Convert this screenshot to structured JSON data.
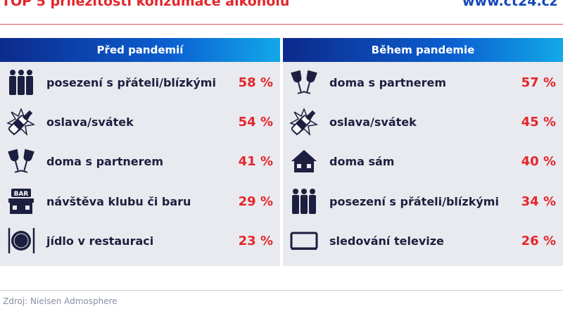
{
  "title": "TOP 5 příležitostí konzumace alkoholu",
  "site": "www.ct24.cz",
  "source": "Zdroj: Nielsen Admosphere",
  "colors": {
    "accent": "#e3262b",
    "navy": "#1c1f3f",
    "header_from": "#0c2a8c",
    "header_to": "#12a8e8"
  },
  "panels": [
    {
      "header": "Před pandemií",
      "items": [
        {
          "icon": "friends-icon",
          "label": "posezení s přáteli/blízkými",
          "value": "58 %"
        },
        {
          "icon": "champagne-icon",
          "label": "oslava/svátek",
          "value": "54 %"
        },
        {
          "icon": "wine-glasses-icon",
          "label": "doma s partnerem",
          "value": "41 %"
        },
        {
          "icon": "bar-icon",
          "label": "návštěva klubu či baru",
          "value": "29 %"
        },
        {
          "icon": "plate-icon",
          "label": "jídlo v restauraci",
          "value": "23 %"
        }
      ]
    },
    {
      "header": "Během pandemie",
      "items": [
        {
          "icon": "wine-glasses-icon",
          "label": "doma s partnerem",
          "value": "57 %"
        },
        {
          "icon": "champagne-icon",
          "label": "oslava/svátek",
          "value": "45 %"
        },
        {
          "icon": "house-icon",
          "label": "doma sám",
          "value": "40 %"
        },
        {
          "icon": "friends-icon",
          "label": "posezení s přáteli/blízkými",
          "value": "34 %"
        },
        {
          "icon": "tv-icon",
          "label": "sledování televize",
          "value": "26 %"
        }
      ]
    }
  ]
}
